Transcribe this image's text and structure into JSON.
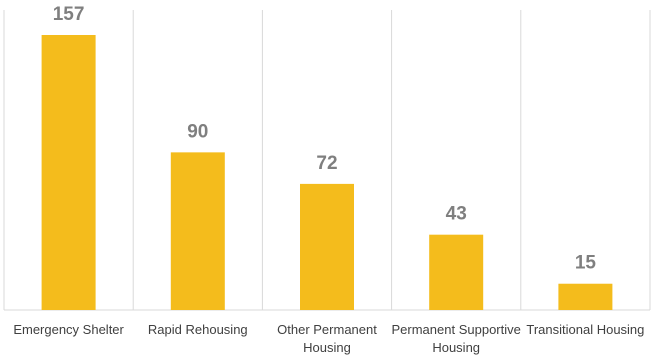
{
  "chart_data": {
    "type": "bar",
    "categories": [
      "Emergency Shelter",
      "Rapid Rehousing",
      "Other Permanent Housing",
      "Permanent Supportive Housing",
      "Transitional Housing"
    ],
    "values": [
      157,
      90,
      72,
      43,
      15
    ],
    "color": "#f4bc1c"
  }
}
